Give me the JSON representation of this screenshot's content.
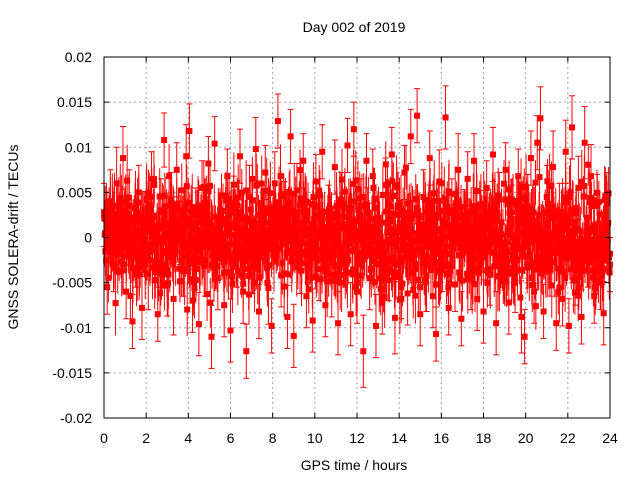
{
  "chart_data": {
    "type": "scatter",
    "title": "Day 002 of 2019",
    "xlabel": "GPS time / hours",
    "ylabel": "GNSS SOLERA-drift / TECUs",
    "xlim": [
      0,
      24
    ],
    "ylim": [
      -0.02,
      0.02
    ],
    "xticks": [
      0,
      2,
      4,
      6,
      8,
      10,
      12,
      14,
      16,
      18,
      20,
      22,
      24
    ],
    "yticks": [
      -0.02,
      -0.015,
      -0.01,
      -0.005,
      0,
      0.005,
      0.01,
      0.015,
      0.02
    ],
    "ytick_labels": [
      "-0.02",
      "-0.015",
      "-0.01",
      "-0.005",
      "0",
      "0.005",
      "0.01",
      "0.015",
      "0.02"
    ],
    "grid": true,
    "series_color": "#ff0000",
    "marker": "square",
    "error_bars": true,
    "points": [
      [
        0.0,
        0.0025,
        0.0035
      ],
      [
        0.15,
        -0.0055,
        0.003
      ],
      [
        0.3,
        0.004,
        0.0035
      ],
      [
        0.45,
        -0.003,
        0.003
      ],
      [
        0.6,
        0.006,
        0.004
      ],
      [
        0.75,
        0.0012,
        0.003
      ],
      [
        0.9,
        0.0088,
        0.0035
      ],
      [
        1.05,
        -0.006,
        0.003
      ],
      [
        1.2,
        0.0035,
        0.004
      ],
      [
        1.35,
        -0.0093,
        0.003
      ],
      [
        1.5,
        -0.002,
        0.0035
      ],
      [
        1.65,
        0.005,
        0.003
      ],
      [
        1.8,
        -0.0078,
        0.0035
      ],
      [
        1.95,
        0.0021,
        0.003
      ],
      [
        2.1,
        -0.004,
        0.004
      ],
      [
        2.25,
        0.0065,
        0.003
      ],
      [
        2.4,
        -0.0015,
        0.0035
      ],
      [
        2.55,
        -0.0085,
        0.003
      ],
      [
        2.7,
        0.003,
        0.0035
      ],
      [
        2.85,
        0.0108,
        0.003
      ],
      [
        3.0,
        -0.0052,
        0.0035
      ],
      [
        3.15,
        0.0042,
        0.003
      ],
      [
        3.3,
        -0.0068,
        0.004
      ],
      [
        3.45,
        0.0075,
        0.003
      ],
      [
        3.6,
        0.0005,
        0.0035
      ],
      [
        3.75,
        -0.0035,
        0.003
      ],
      [
        3.9,
        0.009,
        0.0035
      ],
      [
        4.05,
        0.0118,
        0.003
      ],
      [
        4.2,
        -0.007,
        0.0035
      ],
      [
        4.35,
        0.0025,
        0.003
      ],
      [
        4.5,
        -0.0096,
        0.0035
      ],
      [
        4.65,
        0.0055,
        0.003
      ],
      [
        4.8,
        -0.0025,
        0.004
      ],
      [
        4.95,
        0.0082,
        0.003
      ],
      [
        5.1,
        -0.011,
        0.0035
      ],
      [
        5.25,
        0.0104,
        0.003
      ],
      [
        5.4,
        -0.0045,
        0.0035
      ],
      [
        5.55,
        0.0015,
        0.003
      ],
      [
        5.7,
        -0.0075,
        0.0035
      ],
      [
        5.85,
        0.0068,
        0.003
      ],
      [
        6.0,
        -0.0103,
        0.0035
      ],
      [
        6.15,
        0.0038,
        0.003
      ],
      [
        6.3,
        -0.0015,
        0.004
      ],
      [
        6.45,
        0.009,
        0.003
      ],
      [
        6.6,
        -0.006,
        0.0035
      ],
      [
        6.75,
        -0.0126,
        0.003
      ],
      [
        6.9,
        0.0045,
        0.0035
      ],
      [
        7.05,
        -0.0032,
        0.003
      ],
      [
        7.2,
        0.0098,
        0.0035
      ],
      [
        7.35,
        -0.0082,
        0.003
      ],
      [
        7.5,
        0.0022,
        0.0035
      ],
      [
        7.65,
        0.0072,
        0.003
      ],
      [
        7.8,
        -0.0056,
        0.004
      ],
      [
        7.95,
        -0.0098,
        0.003
      ],
      [
        8.1,
        0.006,
        0.0035
      ],
      [
        8.25,
        0.0129,
        0.003
      ],
      [
        8.4,
        -0.0042,
        0.0035
      ],
      [
        8.55,
        0.0032,
        0.003
      ],
      [
        8.7,
        -0.0088,
        0.0035
      ],
      [
        8.85,
        0.0112,
        0.003
      ],
      [
        9.0,
        -0.0109,
        0.0035
      ],
      [
        9.15,
        0.0052,
        0.003
      ],
      [
        9.3,
        -0.0022,
        0.004
      ],
      [
        9.45,
        0.0085,
        0.003
      ],
      [
        9.6,
        -0.0065,
        0.0035
      ],
      [
        9.75,
        0.001,
        0.003
      ],
      [
        9.9,
        -0.0092,
        0.0035
      ],
      [
        10.05,
        0.0062,
        0.003
      ],
      [
        10.2,
        -0.0035,
        0.0035
      ],
      [
        10.35,
        0.0095,
        0.003
      ],
      [
        10.5,
        -0.0075,
        0.0035
      ],
      [
        10.65,
        0.0028,
        0.003
      ],
      [
        10.8,
        -0.0048,
        0.004
      ],
      [
        10.95,
        0.0078,
        0.003
      ],
      [
        11.1,
        -0.0095,
        0.0035
      ],
      [
        11.25,
        0.0042,
        0.003
      ],
      [
        11.4,
        -0.002,
        0.0035
      ],
      [
        11.55,
        0.0102,
        0.003
      ],
      [
        11.7,
        -0.0085,
        0.0035
      ],
      [
        11.85,
        0.012,
        0.003
      ],
      [
        12.0,
        -0.006,
        0.0035
      ],
      [
        12.15,
        0.0035,
        0.003
      ],
      [
        12.3,
        -0.0126,
        0.004
      ],
      [
        12.45,
        0.0085,
        0.003
      ],
      [
        12.6,
        -0.0045,
        0.0035
      ],
      [
        12.75,
        0.0068,
        0.003
      ],
      [
        12.9,
        -0.0098,
        0.0035
      ],
      [
        13.05,
        0.0015,
        0.003
      ],
      [
        13.2,
        -0.0072,
        0.0035
      ],
      [
        13.35,
        0.0058,
        0.003
      ],
      [
        13.5,
        -0.0035,
        0.0035
      ],
      [
        13.65,
        0.0092,
        0.003
      ],
      [
        13.8,
        -0.0089,
        0.004
      ],
      [
        13.95,
        0.0025,
        0.003
      ],
      [
        14.1,
        -0.0055,
        0.0035
      ],
      [
        14.25,
        0.0072,
        0.003
      ],
      [
        14.4,
        -0.0062,
        0.0035
      ],
      [
        14.55,
        0.0112,
        0.003
      ],
      [
        14.7,
        -0.002,
        0.0035
      ],
      [
        14.85,
        0.0135,
        0.003
      ],
      [
        15.0,
        -0.0085,
        0.0035
      ],
      [
        15.15,
        0.0045,
        0.003
      ],
      [
        15.3,
        -0.0042,
        0.004
      ],
      [
        15.45,
        0.0088,
        0.003
      ],
      [
        15.6,
        -0.0065,
        0.0035
      ],
      [
        15.75,
        -0.0107,
        0.003
      ],
      [
        15.9,
        0.0062,
        0.0035
      ],
      [
        16.05,
        -0.003,
        0.003
      ],
      [
        16.2,
        0.0133,
        0.0035
      ],
      [
        16.35,
        -0.0078,
        0.003
      ],
      [
        16.5,
        0.003,
        0.0035
      ],
      [
        16.65,
        -0.0052,
        0.003
      ],
      [
        16.8,
        0.0075,
        0.004
      ],
      [
        16.95,
        -0.009,
        0.003
      ],
      [
        17.1,
        0.0018,
        0.0035
      ],
      [
        17.25,
        0.0065,
        0.003
      ],
      [
        17.4,
        -0.0045,
        0.0035
      ],
      [
        17.55,
        0.0085,
        0.003
      ],
      [
        17.7,
        -0.0068,
        0.0035
      ],
      [
        17.85,
        0.0022,
        0.003
      ],
      [
        18.0,
        -0.0082,
        0.0035
      ],
      [
        18.15,
        0.0055,
        0.003
      ],
      [
        18.3,
        -0.0035,
        0.004
      ],
      [
        18.45,
        0.0092,
        0.003
      ],
      [
        18.6,
        -0.0095,
        0.0035
      ],
      [
        18.75,
        0.0042,
        0.003
      ],
      [
        18.9,
        -0.002,
        0.0035
      ],
      [
        19.05,
        0.0075,
        0.003
      ],
      [
        19.2,
        -0.0072,
        0.0035
      ],
      [
        19.35,
        0.0028,
        0.003
      ],
      [
        19.5,
        -0.0048,
        0.0035
      ],
      [
        19.65,
        0.0068,
        0.003
      ],
      [
        19.8,
        -0.0088,
        0.004
      ],
      [
        19.95,
        -0.011,
        0.003
      ],
      [
        20.1,
        0.0035,
        0.0035
      ],
      [
        20.25,
        0.0088,
        0.003
      ],
      [
        20.4,
        -0.006,
        0.0035
      ],
      [
        20.55,
        0.0105,
        0.003
      ],
      [
        20.7,
        0.0132,
        0.0035
      ],
      [
        20.85,
        -0.0082,
        0.003
      ],
      [
        21.0,
        0.0045,
        0.0035
      ],
      [
        21.15,
        -0.0035,
        0.003
      ],
      [
        21.3,
        0.0078,
        0.004
      ],
      [
        21.45,
        -0.0095,
        0.003
      ],
      [
        21.6,
        0.0025,
        0.0035
      ],
      [
        21.75,
        -0.0068,
        0.003
      ],
      [
        21.9,
        0.0095,
        0.0035
      ],
      [
        22.05,
        -0.0098,
        0.003
      ],
      [
        22.2,
        0.0122,
        0.0035
      ],
      [
        22.35,
        -0.0045,
        0.003
      ],
      [
        22.5,
        0.0055,
        0.0035
      ],
      [
        22.65,
        -0.0088,
        0.003
      ],
      [
        22.8,
        0.0105,
        0.004
      ],
      [
        22.95,
        -0.0025,
        0.003
      ],
      [
        23.1,
        0.0068,
        0.0035
      ],
      [
        23.25,
        -0.0065,
        0.003
      ],
      [
        23.4,
        0.0035,
        0.0035
      ],
      [
        23.55,
        -0.005,
        0.003
      ],
      [
        23.7,
        -0.0084,
        0.0035
      ],
      [
        23.85,
        0.0042,
        0.003
      ],
      [
        24.0,
        -0.003,
        0.003
      ]
    ]
  }
}
